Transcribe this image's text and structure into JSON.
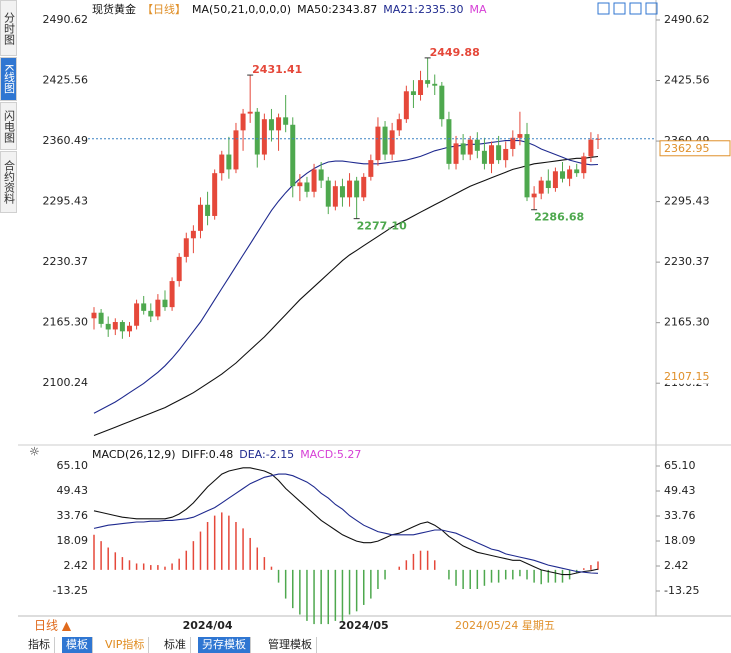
{
  "chart_data": {
    "type": "candlestick",
    "title": "现货黄金",
    "period": "【日线】",
    "indicator": "MA(50,21,0,0,0,0)",
    "extra_legend": {
      "text": "MA",
      "color": "#d63fd6"
    },
    "up_color": "#e5483a",
    "down_color": "#4ea84e",
    "ylim": [
      2039.2,
      2503.5
    ],
    "yticks": [
      {
        "value": 2100.24,
        "label": "2100.24"
      },
      {
        "value": 2165.3,
        "label": "2165.30"
      },
      2230.37,
      2295.43,
      2360.49,
      2425.56,
      2490.62
    ],
    "categories": [
      null,
      null,
      null,
      null,
      null,
      null,
      null,
      null,
      null,
      null,
      null,
      null,
      null,
      null,
      null,
      null,
      "2024/04",
      null,
      null,
      null,
      null,
      null,
      null,
      null,
      null,
      null,
      null,
      null,
      null,
      null,
      null,
      null,
      null,
      null,
      null,
      null,
      null,
      null,
      "2024/05",
      null,
      null,
      null,
      null,
      null,
      null,
      null,
      null,
      null,
      null,
      null,
      null,
      null,
      null,
      null,
      null,
      null,
      null,
      null,
      null,
      null,
      null,
      null,
      null,
      null,
      null,
      null,
      null,
      null,
      null,
      null,
      null,
      null
    ],
    "candles": [
      [
        2170,
        2182,
        2158,
        2176
      ],
      [
        2176,
        2180,
        2160,
        2164
      ],
      [
        2164,
        2172,
        2150,
        2158
      ],
      [
        2158,
        2170,
        2152,
        2166
      ],
      [
        2166,
        2168,
        2148,
        2156
      ],
      [
        2156,
        2166,
        2150,
        2162
      ],
      [
        2162,
        2190,
        2158,
        2186
      ],
      [
        2186,
        2194,
        2174,
        2178
      ],
      [
        2178,
        2186,
        2166,
        2172
      ],
      [
        2172,
        2196,
        2168,
        2190
      ],
      [
        2190,
        2200,
        2178,
        2182
      ],
      [
        2182,
        2214,
        2178,
        2210
      ],
      [
        2210,
        2240,
        2204,
        2236
      ],
      [
        2236,
        2262,
        2230,
        2256
      ],
      [
        2256,
        2270,
        2240,
        2264
      ],
      [
        2264,
        2300,
        2256,
        2292
      ],
      [
        2292,
        2306,
        2270,
        2280
      ],
      [
        2280,
        2330,
        2276,
        2326
      ],
      [
        2326,
        2350,
        2318,
        2346
      ],
      [
        2346,
        2365,
        2320,
        2330
      ],
      [
        2330,
        2380,
        2326,
        2372
      ],
      [
        2372,
        2395,
        2350,
        2390
      ],
      [
        2390,
        2431.41,
        2380,
        2392
      ],
      [
        2392,
        2396,
        2332,
        2346
      ],
      [
        2346,
        2390,
        2340,
        2384
      ],
      [
        2384,
        2395,
        2360,
        2372
      ],
      [
        2372,
        2390,
        2350,
        2386
      ],
      [
        2386,
        2410,
        2370,
        2378
      ],
      [
        2378,
        2386,
        2300,
        2312
      ],
      [
        2312,
        2325,
        2296,
        2316
      ],
      [
        2316,
        2322,
        2300,
        2306
      ],
      [
        2306,
        2336,
        2300,
        2330
      ],
      [
        2330,
        2338,
        2310,
        2318
      ],
      [
        2318,
        2322,
        2282,
        2290
      ],
      [
        2290,
        2318,
        2286,
        2312
      ],
      [
        2312,
        2320,
        2290,
        2300
      ],
      [
        2300,
        2326,
        2290,
        2318
      ],
      [
        2318,
        2322,
        2277.1,
        2300
      ],
      [
        2300,
        2326,
        2296,
        2322
      ],
      [
        2322,
        2346,
        2318,
        2340
      ],
      [
        2340,
        2386,
        2334,
        2376
      ],
      [
        2376,
        2382,
        2340,
        2346
      ],
      [
        2346,
        2380,
        2340,
        2372
      ],
      [
        2372,
        2390,
        2366,
        2384
      ],
      [
        2384,
        2420,
        2380,
        2414
      ],
      [
        2414,
        2426,
        2396,
        2410
      ],
      [
        2410,
        2436,
        2404,
        2426
      ],
      [
        2426,
        2449.88,
        2418,
        2422
      ],
      [
        2422,
        2432,
        2410,
        2420
      ],
      [
        2420,
        2424,
        2376,
        2384
      ],
      [
        2384,
        2392,
        2330,
        2336
      ],
      [
        2336,
        2366,
        2330,
        2358
      ],
      [
        2358,
        2368,
        2340,
        2346
      ],
      [
        2346,
        2366,
        2340,
        2362
      ],
      [
        2362,
        2370,
        2342,
        2350
      ],
      [
        2350,
        2364,
        2330,
        2336
      ],
      [
        2336,
        2360,
        2326,
        2356
      ],
      [
        2356,
        2366,
        2336,
        2340
      ],
      [
        2340,
        2360,
        2332,
        2352
      ],
      [
        2352,
        2372,
        2344,
        2364
      ],
      [
        2364,
        2392,
        2356,
        2368
      ],
      [
        2368,
        2380,
        2296,
        2300
      ],
      [
        2300,
        2312,
        2286.68,
        2304
      ],
      [
        2304,
        2322,
        2298,
        2318
      ],
      [
        2318,
        2330,
        2304,
        2310
      ],
      [
        2310,
        2332,
        2306,
        2328
      ],
      [
        2328,
        2338,
        2316,
        2320
      ],
      [
        2320,
        2334,
        2312,
        2330
      ],
      [
        2330,
        2336,
        2322,
        2326
      ],
      [
        2326,
        2348,
        2320,
        2344
      ],
      [
        2344,
        2370,
        2338,
        2362
      ],
      [
        2362,
        2368,
        2352,
        2362.95
      ]
    ],
    "value_labels": [
      null,
      null,
      null,
      null,
      null,
      null,
      null,
      null,
      null,
      null,
      null,
      null,
      null,
      null,
      null,
      null,
      null,
      null,
      null,
      null,
      null,
      null,
      "2431.41",
      null,
      null,
      null,
      null,
      null,
      null,
      null,
      null,
      null,
      null,
      null,
      null,
      null,
      null,
      "2277.10",
      null,
      null,
      null,
      null,
      null,
      null,
      null,
      null,
      null,
      "2449.88",
      null,
      null,
      null,
      null,
      null,
      null,
      null,
      null,
      null,
      null,
      null,
      null,
      null,
      null,
      "2286.68",
      null,
      null,
      null,
      null,
      null,
      null,
      null,
      null,
      null
    ],
    "series": [
      {
        "name": "MA50:2343.87",
        "color": "#111111",
        "values": [
          2044,
          2047,
          2050,
          2053,
          2056,
          2059,
          2062,
          2065,
          2068,
          2071,
          2074,
          2078,
          2082,
          2086,
          2090,
          2095,
          2100,
          2105,
          2110,
          2116,
          2122,
          2129,
          2136,
          2143,
          2150,
          2158,
          2166,
          2174,
          2182,
          2190,
          2197,
          2204,
          2211,
          2218,
          2225,
          2232,
          2238,
          2243,
          2248,
          2253,
          2258,
          2263,
          2268,
          2272,
          2276,
          2280,
          2284,
          2288,
          2292,
          2296,
          2300,
          2304,
          2308,
          2312,
          2315,
          2318,
          2321,
          2324,
          2327,
          2330,
          2332,
          2334,
          2336,
          2337,
          2338,
          2339,
          2340,
          2341,
          2342,
          2342,
          2343,
          2343.87
        ]
      },
      {
        "name": "MA21:2335.30",
        "color": "#1f2a8f",
        "values": [
          2068,
          2072,
          2076,
          2080,
          2085,
          2090,
          2095,
          2100,
          2106,
          2112,
          2119,
          2127,
          2136,
          2146,
          2156,
          2166,
          2178,
          2190,
          2202,
          2214,
          2226,
          2238,
          2250,
          2262,
          2274,
          2286,
          2296,
          2305,
          2313,
          2320,
          2326,
          2331,
          2335,
          2338,
          2339,
          2339,
          2338,
          2337,
          2336,
          2336,
          2336,
          2337,
          2338,
          2339,
          2340,
          2342,
          2344,
          2347,
          2350,
          2352,
          2354,
          2355,
          2356,
          2357,
          2357,
          2358,
          2359,
          2360,
          2361,
          2361,
          2361,
          2359,
          2356,
          2352,
          2349,
          2346,
          2343,
          2340,
          2338,
          2336,
          2335,
          2335.3
        ]
      }
    ],
    "crosshair_price": 2107.15,
    "crosshair_date": "2024/05/24 星期五",
    "macd": {
      "title": "MACD(26,12,9)",
      "ylim": [
        -28.3,
        72.0
      ],
      "yticks": [
        -13.25,
        2.42,
        18.09,
        33.76,
        49.43,
        {
          "value": 65.1,
          "label": "65.10"
        }
      ],
      "series": [
        {
          "name": "DIFF:0.48",
          "color": "#111111",
          "values": [
            37,
            36,
            35,
            34,
            33,
            32.5,
            32,
            32,
            32,
            32,
            32,
            33,
            35,
            38,
            42,
            47,
            52,
            56,
            60,
            62,
            63,
            64,
            64,
            63,
            62,
            60,
            56,
            51,
            47,
            43,
            39,
            35,
            31,
            28,
            25,
            22,
            20,
            18,
            17,
            17,
            18,
            20,
            22,
            23,
            25,
            27,
            29,
            30,
            28,
            25,
            21,
            18,
            15,
            13,
            11,
            10,
            9,
            8,
            7,
            6,
            6,
            4,
            2,
            0,
            -1,
            -2,
            -3,
            -3,
            -2,
            -1,
            -0.5,
            0.48
          ]
        },
        {
          "name": "DEA:-2.15",
          "color": "#1f2a8f",
          "values": [
            26,
            27,
            28,
            28.5,
            29,
            29.5,
            30,
            30,
            30.5,
            30.5,
            31,
            31,
            31.5,
            32,
            33,
            35,
            37,
            39,
            42,
            45,
            48,
            51,
            54,
            56,
            58,
            59,
            60,
            60,
            59,
            57,
            55,
            52,
            48,
            45,
            41,
            38,
            34,
            31,
            28,
            26,
            24,
            23,
            22,
            22,
            22,
            22,
            23,
            24,
            25,
            25,
            24,
            23,
            21,
            19,
            17,
            15,
            13,
            12,
            10,
            9,
            8,
            7,
            6,
            4.5,
            3,
            2,
            1,
            0,
            -1,
            -1.5,
            -2,
            -2.15
          ]
        }
      ],
      "histogram": {
        "name": "MACD:5.27",
        "color": "#d63fd6",
        "values": [
          22,
          18,
          14,
          11,
          8,
          6,
          4,
          4,
          3,
          3,
          2,
          4,
          7,
          12,
          18,
          24,
          30,
          34,
          36,
          34,
          30,
          26,
          20,
          14,
          8,
          2,
          -8,
          -18,
          -24,
          -28,
          -32,
          -34,
          -34,
          -34,
          -32,
          -32,
          -28,
          -26,
          -22,
          -18,
          -12,
          -6,
          0,
          2,
          6,
          10,
          12,
          12,
          6,
          0,
          -6,
          -10,
          -12,
          -12,
          -12,
          -10,
          -8,
          -8,
          -6,
          -6,
          -4,
          -6,
          -8,
          -9,
          -8,
          -8,
          -8,
          -6,
          -2,
          1,
          3,
          5.27
        ]
      }
    }
  },
  "sidebar": [
    "分时图",
    "K线图",
    "闪电图",
    "合约资料"
  ],
  "period_button": "日线 ▲",
  "toolbar": [
    "指标",
    "模板",
    "VIP指标",
    "标准",
    "另存模板",
    "管理模板"
  ]
}
